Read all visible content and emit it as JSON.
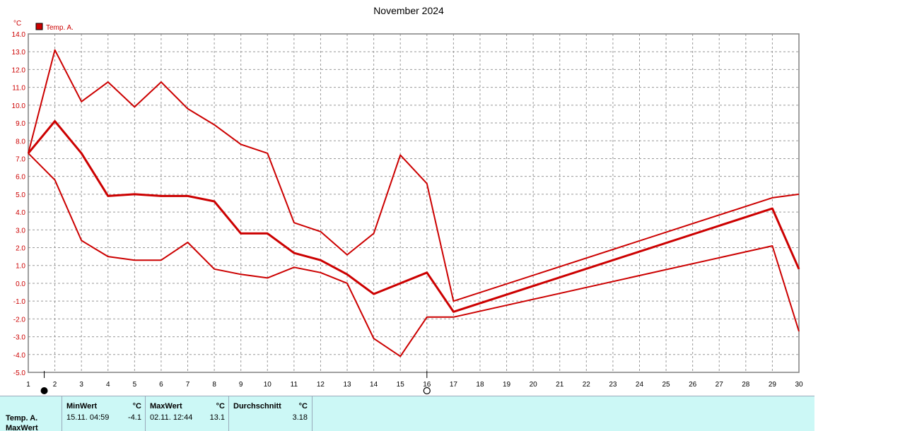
{
  "chart_data": {
    "type": "line",
    "title": "November 2024",
    "ylabel": "°C",
    "legend": {
      "placement": "top-left",
      "entries": [
        {
          "name": "Temp. A.",
          "color": "#cc0000"
        }
      ]
    },
    "grid": true,
    "xlim": [
      1,
      30
    ],
    "ylim": [
      -5,
      14
    ],
    "x_ticks": [
      1,
      2,
      3,
      4,
      5,
      6,
      7,
      8,
      9,
      10,
      11,
      12,
      13,
      14,
      15,
      16,
      17,
      18,
      19,
      20,
      21,
      22,
      23,
      24,
      25,
      26,
      27,
      28,
      29,
      30
    ],
    "y_ticks": [
      "14.0",
      "13.0",
      "12.0",
      "11.0",
      "10.0",
      "9.0",
      "8.0",
      "7.0",
      "6.0",
      "5.0",
      "4.0",
      "3.0",
      "2.0",
      "1.0",
      "0.0",
      "-1.0",
      "-2.0",
      "-3.0",
      "-4.0",
      "-5.0"
    ],
    "x_markers": [
      {
        "x": 1.6,
        "symbol": "filled-circle"
      },
      {
        "x": 16,
        "symbol": "open-circle"
      }
    ],
    "series": [
      {
        "role": "max",
        "x": [
          1,
          2,
          3,
          4,
          5,
          6,
          7,
          8,
          9,
          10,
          11,
          12,
          13,
          14,
          15,
          16,
          17,
          29,
          30
        ],
        "values": [
          7.3,
          13.1,
          10.2,
          11.3,
          9.9,
          11.3,
          9.8,
          8.9,
          7.8,
          7.3,
          3.4,
          2.9,
          1.6,
          2.8,
          7.2,
          5.6,
          -1.0,
          4.8,
          5.0
        ]
      },
      {
        "role": "mean",
        "x": [
          1,
          2,
          3,
          4,
          5,
          6,
          7,
          8,
          9,
          10,
          11,
          12,
          13,
          14,
          16,
          17,
          29,
          30
        ],
        "values": [
          7.3,
          9.1,
          7.3,
          4.9,
          5.0,
          4.9,
          4.9,
          4.6,
          2.8,
          2.8,
          1.7,
          1.3,
          0.5,
          -0.6,
          0.6,
          -1.6,
          4.2,
          0.8
        ]
      },
      {
        "role": "min",
        "x": [
          1,
          2,
          3,
          4,
          5,
          6,
          7,
          8,
          9,
          10,
          11,
          12,
          13,
          14,
          15,
          16,
          17,
          29,
          30
        ],
        "values": [
          7.3,
          5.8,
          2.4,
          1.5,
          1.3,
          1.3,
          2.3,
          0.8,
          0.5,
          0.3,
          0.9,
          0.6,
          0.0,
          -3.1,
          -4.1,
          -1.9,
          -1.9,
          2.1,
          -2.7
        ]
      }
    ]
  },
  "stats": {
    "row_labels": [
      "Temp. A.",
      "MaxWert"
    ],
    "min": {
      "header": "MinWert",
      "unit": "°C",
      "timestamp": "15.11.  04:59",
      "value": "-4.1"
    },
    "max": {
      "header": "MaxWert",
      "unit": "°C",
      "timestamp": "02.11.  12:44",
      "value": "13.1"
    },
    "avg": {
      "header": "Durchschnitt",
      "unit": "°C",
      "value": "3.18"
    }
  },
  "colors": {
    "series": "#cc0000",
    "grid": "#999999",
    "panel": "#ccf8f6"
  }
}
